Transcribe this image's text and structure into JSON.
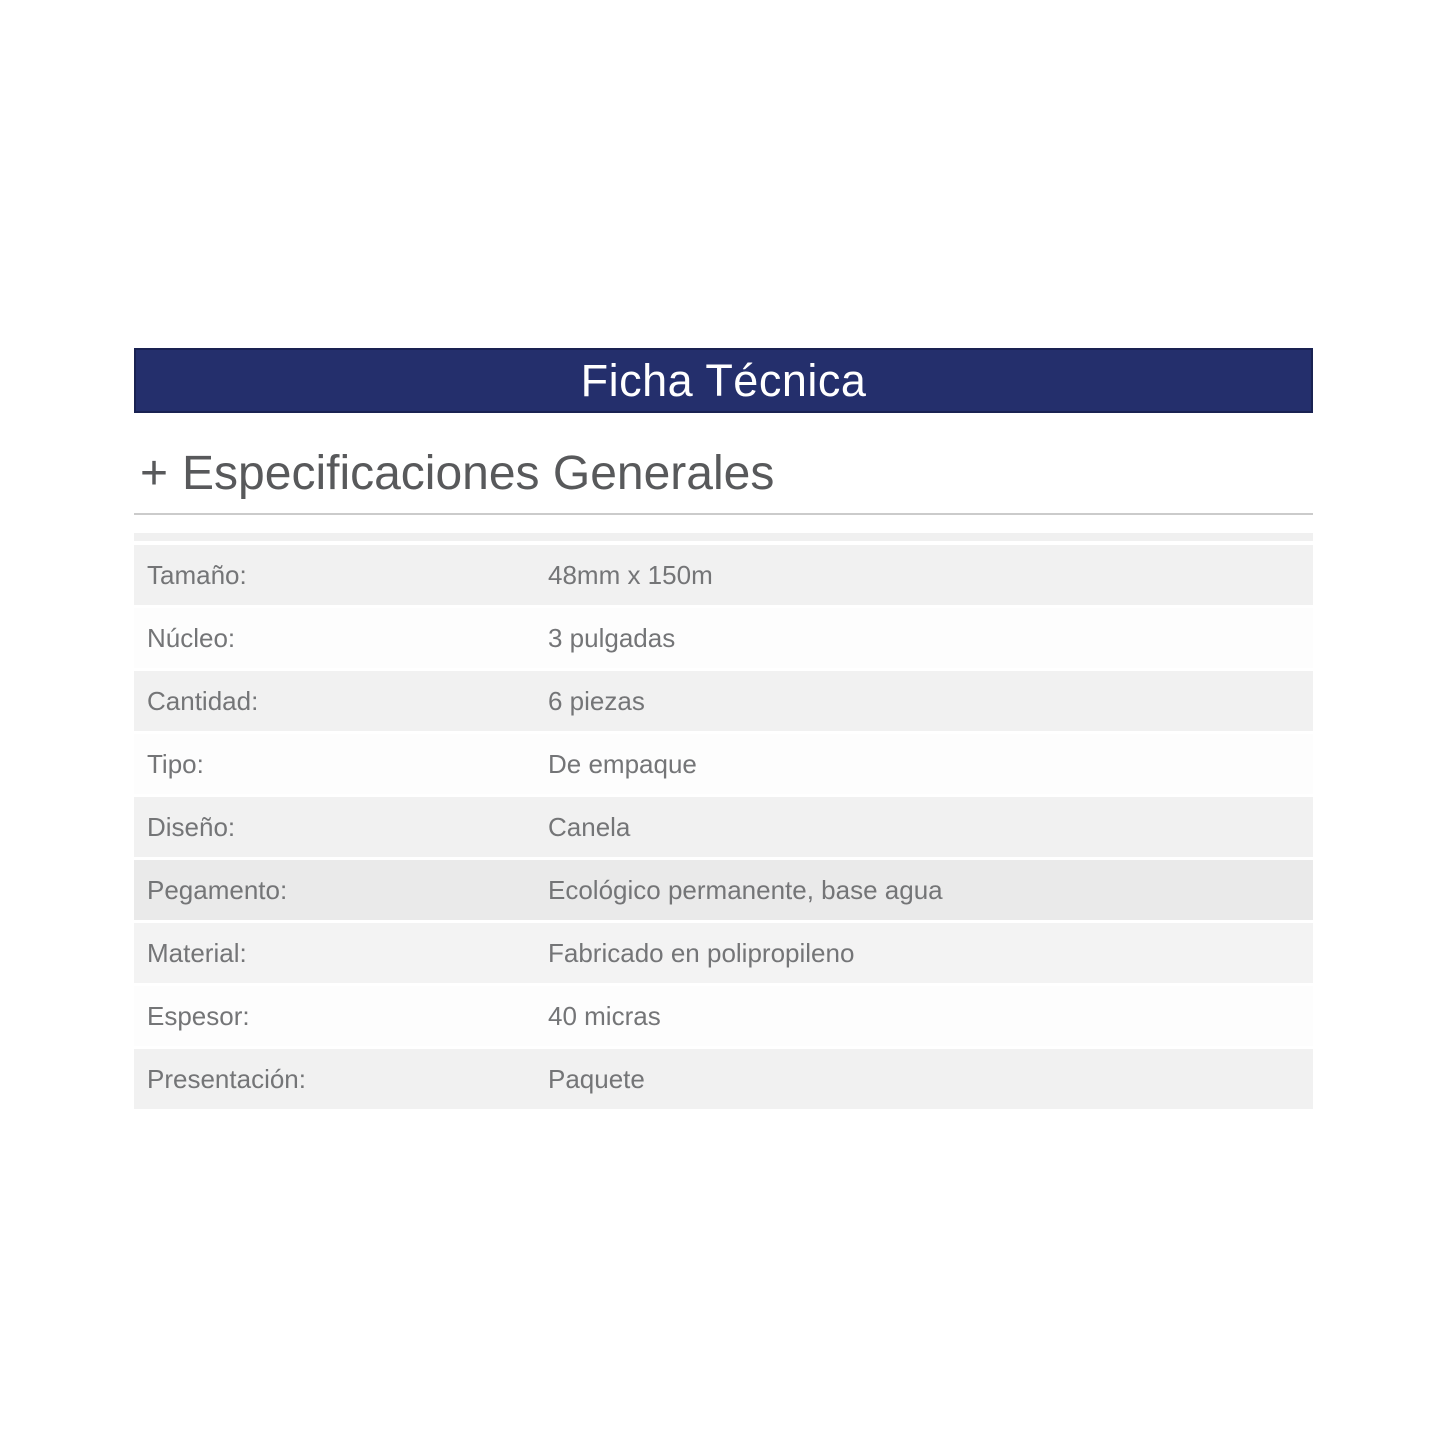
{
  "title_bar": {
    "label": "Ficha Técnica"
  },
  "section": {
    "expand_symbol": "+",
    "heading": "Especificaciones Generales"
  },
  "table": {
    "rows": [
      {
        "label": "Tamaño:",
        "value": "48mm x 150m"
      },
      {
        "label": "Núcleo:",
        "value": "3 pulgadas"
      },
      {
        "label": "Cantidad:",
        "value": "6 piezas"
      },
      {
        "label": "Tipo:",
        "value": "De empaque"
      },
      {
        "label": "Diseño:",
        "value": "Canela"
      },
      {
        "label": "Pegamento:",
        "value": "Ecológico permanente, base agua"
      },
      {
        "label": "Material:",
        "value": "Fabricado en polipropileno"
      },
      {
        "label": "Espesor:",
        "value": "40 micras"
      },
      {
        "label": "Presentación:",
        "value": "Paquete"
      }
    ]
  },
  "colors": {
    "brand_navy": "#242f6c",
    "bar_border": "#1a2252",
    "heading_text": "#58595b",
    "table_text": "#747577",
    "row_gray": "#f1f1f1",
    "row_gray_dark": "#eaeaea",
    "row_gray_light": "#f3f3f3",
    "row_white": "#fdfdfd",
    "divider": "#cbcbcb"
  }
}
